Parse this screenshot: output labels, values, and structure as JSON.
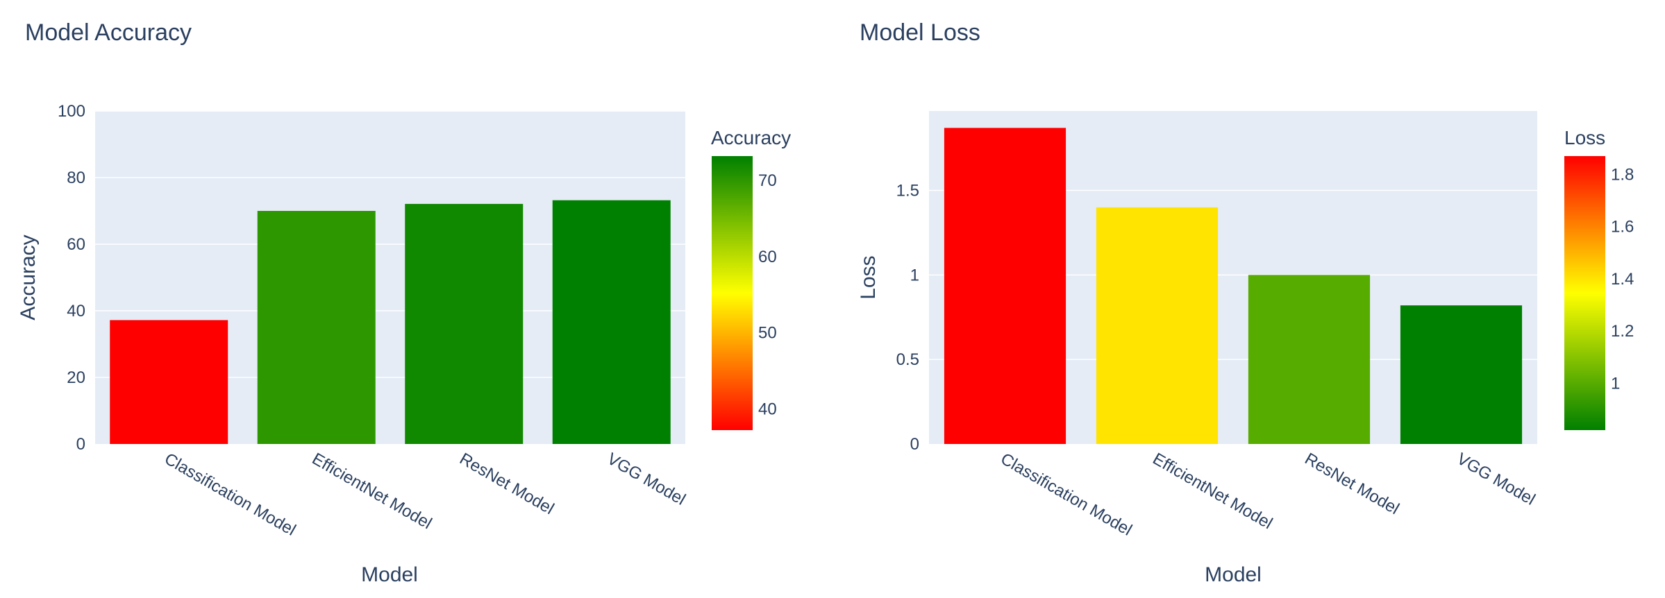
{
  "chart_data": [
    {
      "type": "bar",
      "title": "Model Accuracy",
      "xlabel": "Model",
      "ylabel": "Accuracy",
      "categories": [
        "Classification Model",
        "EfficientNet Model",
        "ResNet Model",
        "VGG Model"
      ],
      "values": [
        37.2,
        70.0,
        72.1,
        73.2
      ],
      "ylim": [
        0,
        100
      ],
      "yticks": [
        0,
        20,
        40,
        60,
        80,
        100
      ],
      "colorbar": {
        "title": "Accuracy",
        "range": [
          37.2,
          73.2
        ],
        "ticks": [
          40,
          50,
          60,
          70
        ],
        "colorscale": [
          "#ff0000",
          "#ffff00",
          "#008000"
        ],
        "direction": "low-to-high: red, yellow, green"
      },
      "grid": true
    },
    {
      "type": "bar",
      "title": "Model Loss",
      "xlabel": "Model",
      "ylabel": "Loss",
      "categories": [
        "Classification Model",
        "EfficientNet Model",
        "ResNet Model",
        "VGG Model"
      ],
      "values": [
        1.87,
        1.4,
        1.0,
        0.82
      ],
      "ylim": [
        0,
        1.97
      ],
      "yticks": [
        0,
        0.5,
        1,
        1.5
      ],
      "colorbar": {
        "title": "Loss",
        "range": [
          0.82,
          1.87
        ],
        "ticks": [
          1,
          1.2,
          1.4,
          1.6,
          1.8
        ],
        "colorscale": [
          "#008000",
          "#ffff00",
          "#ff0000"
        ],
        "direction": "low-to-high: green, yellow, red"
      },
      "grid": true
    }
  ],
  "colors": {
    "plot_background": "#e5ecf6",
    "text": "#2a3f5f",
    "gridline": "#ffffff"
  }
}
